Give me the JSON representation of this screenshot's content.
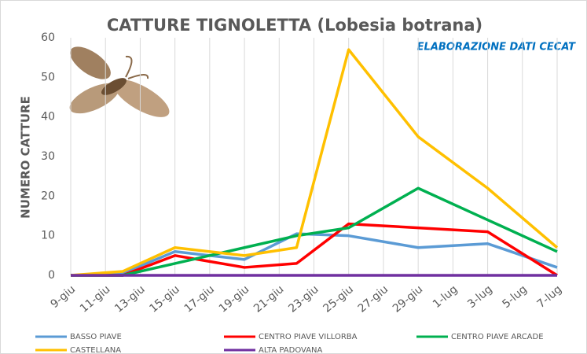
{
  "chart_data": {
    "type": "line",
    "title": "CATTURE TIGNOLETTA (Lobesia botrana)",
    "subtitle": "ELABORAZIONE DATI CECAT",
    "y_label": "NUMERO CATTURE",
    "x": [
      0,
      3,
      6,
      10,
      13,
      16,
      20,
      24,
      28
    ],
    "xlim": [
      0,
      28
    ],
    "xticks": [
      {
        "value": 0,
        "label": "9-giu"
      },
      {
        "value": 2,
        "label": "11-giu"
      },
      {
        "value": 4,
        "label": "13-giu"
      },
      {
        "value": 6,
        "label": "15-giu"
      },
      {
        "value": 8,
        "label": "17-giu"
      },
      {
        "value": 10,
        "label": "19-giu"
      },
      {
        "value": 12,
        "label": "21-giu"
      },
      {
        "value": 14,
        "label": "23-giu"
      },
      {
        "value": 16,
        "label": "25-giu"
      },
      {
        "value": 18,
        "label": "27-giu"
      },
      {
        "value": 20,
        "label": "29-giu"
      },
      {
        "value": 22,
        "label": "1-lug"
      },
      {
        "value": 24,
        "label": "3-lug"
      },
      {
        "value": 26,
        "label": "5-lug"
      },
      {
        "value": 28,
        "label": "7-lug"
      }
    ],
    "ylim": [
      0,
      60
    ],
    "yticks": [
      0,
      10,
      20,
      30,
      40,
      50,
      60
    ],
    "grid": true,
    "series": [
      {
        "name": "BASSO PIAVE",
        "color": "#5b9bd5",
        "values": [
          0,
          0.5,
          6,
          4,
          10.5,
          10,
          7,
          8,
          2
        ]
      },
      {
        "name": "CENTRO PIAVE VILLORBA",
        "color": "#ff0000",
        "values": [
          0,
          0,
          5,
          2,
          3,
          13,
          12,
          11,
          0
        ]
      },
      {
        "name": "CENTRO PIAVE ARCADE",
        "color": "#00b050",
        "values": [
          0,
          0,
          3,
          7,
          10,
          12,
          22,
          14,
          6
        ]
      },
      {
        "name": "CASTELLANA",
        "color": "#ffc000",
        "values": [
          0,
          1,
          7,
          5,
          7,
          57,
          35,
          22,
          7
        ]
      },
      {
        "name": "ALTA PADOVANA",
        "color": "#7030a0",
        "values": [
          0,
          0,
          0,
          0,
          0,
          0,
          0,
          0,
          0
        ]
      }
    ]
  }
}
